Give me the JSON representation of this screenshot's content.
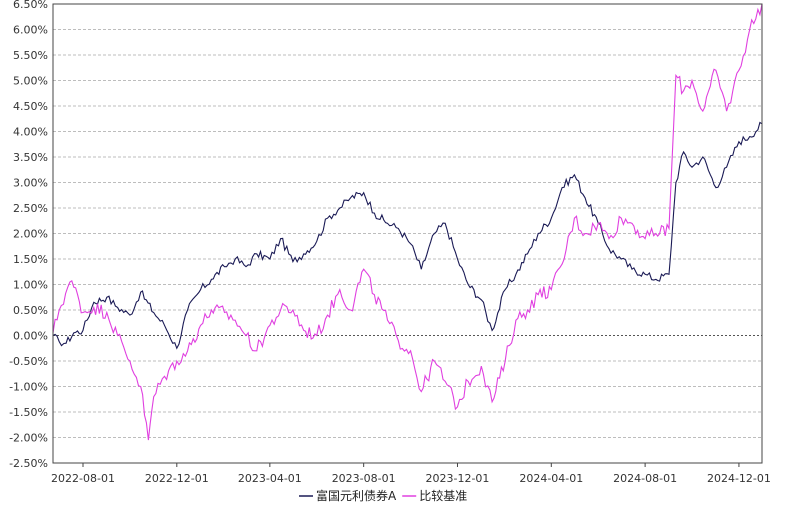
{
  "chart_data": {
    "type": "line",
    "title": "",
    "xlabel": "",
    "ylabel": "",
    "x_start": "2022-06-23",
    "x_end": "2024-12-31",
    "x_tick_labels": [
      "2022-08-01",
      "2022-12-01",
      "2023-04-01",
      "2023-08-01",
      "2023-12-01",
      "2024-04-01",
      "2024-08-01",
      "2024-12-01"
    ],
    "y_tick_labels": [
      "6.50%",
      "6.00%",
      "5.50%",
      "5.00%",
      "4.50%",
      "4.00%",
      "3.50%",
      "3.00%",
      "2.50%",
      "2.00%",
      "1.50%",
      "1.00%",
      "0.50%",
      "0.00%",
      "-0.50%",
      "-1.00%",
      "-1.50%",
      "-2.00%",
      "-2.50%"
    ],
    "ylim": [
      -2.5,
      6.5
    ],
    "y_unit": "%",
    "grid": true,
    "legend_position": "bottom-center",
    "series": [
      {
        "name": "富国元利债券A",
        "color": "#1a1a55",
        "points": [
          [
            "2022-06-23",
            0.0
          ],
          [
            "2022-07-01",
            -0.12
          ],
          [
            "2022-07-10",
            -0.15
          ],
          [
            "2022-07-20",
            0.05
          ],
          [
            "2022-08-01",
            0.1
          ],
          [
            "2022-08-15",
            0.65
          ],
          [
            "2022-09-01",
            0.75
          ],
          [
            "2022-09-15",
            0.55
          ],
          [
            "2022-10-01",
            0.4
          ],
          [
            "2022-10-15",
            0.85
          ],
          [
            "2022-11-01",
            0.45
          ],
          [
            "2022-11-15",
            0.2
          ],
          [
            "2022-12-01",
            -0.25
          ],
          [
            "2022-12-15",
            0.5
          ],
          [
            "2023-01-01",
            0.9
          ],
          [
            "2023-01-15",
            1.1
          ],
          [
            "2023-02-01",
            1.35
          ],
          [
            "2023-02-15",
            1.5
          ],
          [
            "2023-03-01",
            1.35
          ],
          [
            "2023-03-15",
            1.6
          ],
          [
            "2023-04-01",
            1.5
          ],
          [
            "2023-04-15",
            1.9
          ],
          [
            "2023-05-01",
            1.45
          ],
          [
            "2023-05-15",
            1.6
          ],
          [
            "2023-06-01",
            1.85
          ],
          [
            "2023-06-15",
            2.3
          ],
          [
            "2023-07-01",
            2.5
          ],
          [
            "2023-07-15",
            2.7
          ],
          [
            "2023-08-01",
            2.8
          ],
          [
            "2023-08-15",
            2.4
          ],
          [
            "2023-09-01",
            2.2
          ],
          [
            "2023-09-15",
            2.1
          ],
          [
            "2023-10-01",
            1.8
          ],
          [
            "2023-10-15",
            1.3
          ],
          [
            "2023-11-01",
            2.0
          ],
          [
            "2023-11-15",
            2.2
          ],
          [
            "2023-12-01",
            1.5
          ],
          [
            "2023-12-15",
            1.0
          ],
          [
            "2024-01-01",
            0.7
          ],
          [
            "2024-01-15",
            0.1
          ],
          [
            "2024-02-01",
            0.9
          ],
          [
            "2024-02-15",
            1.2
          ],
          [
            "2024-03-01",
            1.6
          ],
          [
            "2024-03-15",
            2.0
          ],
          [
            "2024-04-01",
            2.3
          ],
          [
            "2024-04-15",
            2.9
          ],
          [
            "2024-05-01",
            3.15
          ],
          [
            "2024-05-15",
            2.7
          ],
          [
            "2024-06-01",
            2.2
          ],
          [
            "2024-06-15",
            1.7
          ],
          [
            "2024-07-01",
            1.5
          ],
          [
            "2024-07-15",
            1.3
          ],
          [
            "2024-08-01",
            1.2
          ],
          [
            "2024-08-15",
            1.1
          ],
          [
            "2024-09-01",
            1.2
          ],
          [
            "2024-09-10",
            3.0
          ],
          [
            "2024-09-20",
            3.6
          ],
          [
            "2024-10-01",
            3.3
          ],
          [
            "2024-10-15",
            3.5
          ],
          [
            "2024-11-01",
            2.9
          ],
          [
            "2024-11-15",
            3.3
          ],
          [
            "2024-12-01",
            3.8
          ],
          [
            "2024-12-15",
            3.9
          ],
          [
            "2024-12-31",
            4.15
          ]
        ]
      },
      {
        "name": "比较基准",
        "color": "#e040e0",
        "points": [
          [
            "2022-06-23",
            0.05
          ],
          [
            "2022-07-01",
            0.5
          ],
          [
            "2022-07-15",
            1.05
          ],
          [
            "2022-07-25",
            0.8
          ],
          [
            "2022-08-01",
            0.45
          ],
          [
            "2022-08-15",
            0.55
          ],
          [
            "2022-09-01",
            0.45
          ],
          [
            "2022-09-15",
            0.0
          ],
          [
            "2022-10-01",
            -0.5
          ],
          [
            "2022-10-15",
            -1.0
          ],
          [
            "2022-10-25",
            -2.05
          ],
          [
            "2022-11-01",
            -1.2
          ],
          [
            "2022-11-15",
            -0.8
          ],
          [
            "2022-12-01",
            -0.5
          ],
          [
            "2022-12-15",
            -0.3
          ],
          [
            "2023-01-01",
            0.2
          ],
          [
            "2023-01-15",
            0.5
          ],
          [
            "2023-02-01",
            0.45
          ],
          [
            "2023-02-15",
            0.3
          ],
          [
            "2023-03-01",
            0.0
          ],
          [
            "2023-03-15",
            -0.3
          ],
          [
            "2023-04-01",
            0.2
          ],
          [
            "2023-04-15",
            0.5
          ],
          [
            "2023-05-01",
            0.5
          ],
          [
            "2023-05-15",
            0.1
          ],
          [
            "2023-06-01",
            0.0
          ],
          [
            "2023-06-15",
            0.4
          ],
          [
            "2023-07-01",
            0.9
          ],
          [
            "2023-07-15",
            0.5
          ],
          [
            "2023-08-01",
            1.3
          ],
          [
            "2023-08-15",
            0.8
          ],
          [
            "2023-09-01",
            0.3
          ],
          [
            "2023-09-15",
            -0.1
          ],
          [
            "2023-10-01",
            -0.3
          ],
          [
            "2023-10-15",
            -1.1
          ],
          [
            "2023-11-01",
            -0.5
          ],
          [
            "2023-11-15",
            -0.9
          ],
          [
            "2023-12-01",
            -1.4
          ],
          [
            "2023-12-15",
            -0.9
          ],
          [
            "2024-01-01",
            -0.6
          ],
          [
            "2024-01-15",
            -1.3
          ],
          [
            "2024-02-01",
            -0.5
          ],
          [
            "2024-02-15",
            0.3
          ],
          [
            "2024-03-01",
            0.5
          ],
          [
            "2024-03-15",
            0.8
          ],
          [
            "2024-04-01",
            0.9
          ],
          [
            "2024-04-15",
            1.4
          ],
          [
            "2024-05-01",
            2.3
          ],
          [
            "2024-05-15",
            2.0
          ],
          [
            "2024-06-01",
            2.2
          ],
          [
            "2024-06-15",
            1.9
          ],
          [
            "2024-07-01",
            2.3
          ],
          [
            "2024-07-15",
            2.2
          ],
          [
            "2024-08-01",
            1.9
          ],
          [
            "2024-08-15",
            2.0
          ],
          [
            "2024-09-01",
            2.1
          ],
          [
            "2024-09-10",
            5.1
          ],
          [
            "2024-09-20",
            4.8
          ],
          [
            "2024-10-01",
            5.0
          ],
          [
            "2024-10-15",
            4.4
          ],
          [
            "2024-11-01",
            5.2
          ],
          [
            "2024-11-15",
            4.4
          ],
          [
            "2024-12-01",
            5.2
          ],
          [
            "2024-12-15",
            6.0
          ],
          [
            "2024-12-31",
            6.5
          ]
        ]
      }
    ]
  }
}
